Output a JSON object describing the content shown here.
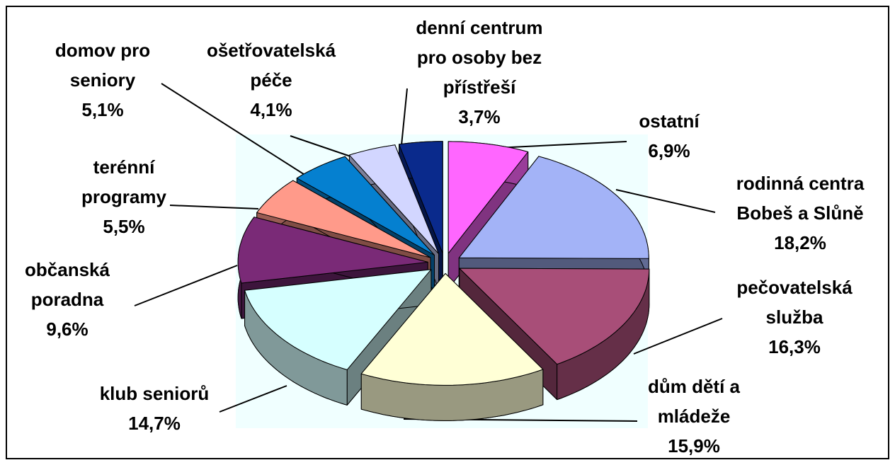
{
  "chart_data": {
    "type": "pie",
    "categories": [
      "ostatní",
      "rodinná centra Bobeš a Slůně",
      "pečovatelská služba",
      "dům dětí a mládeže",
      "klub seniorů",
      "občanská poradna",
      "terénní programy",
      "domov pro seniory",
      "ošetřovatelská péče",
      "denní centrum pro osoby bez přístřeší"
    ],
    "values": [
      6.9,
      18.2,
      16.3,
      15.9,
      14.7,
      9.6,
      5.5,
      5.1,
      4.1,
      3.7
    ],
    "value_labels": [
      "6,9%",
      "18,2%",
      "16,3%",
      "15,9%",
      "14,7%",
      "9,6%",
      "5,5%",
      "5,1%",
      "4,1%",
      "3,7%"
    ],
    "colors": [
      "#ff66ff",
      "#a3b3f7",
      "#a84e78",
      "#ffffd6",
      "#d6ffff",
      "#7a2a77",
      "#ff9a8a",
      "#0580d0",
      "#d2d6ff",
      "#0a2a8c"
    ]
  }
}
